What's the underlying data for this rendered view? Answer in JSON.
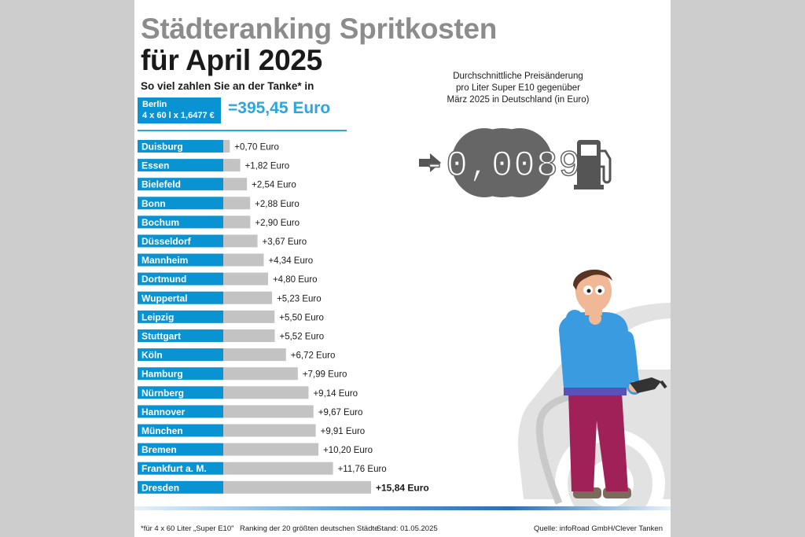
{
  "header": {
    "title_line1": "Städteranking Spritkosten",
    "title_line2": "für April 2025",
    "subtitle": "So viel zahlen Sie an der Tanke* in"
  },
  "berlin": {
    "city": "Berlin",
    "formula": "4 x 60 l x 1,6477 €",
    "total": "=395,45 Euro"
  },
  "price_change": {
    "caption_line1": "Durchschnittliche Preisänderung",
    "caption_line2": "pro Liter Super E10 gegenüber",
    "caption_line3": "März 2025 in Deutschland (in Euro)",
    "value": "-0,0089"
  },
  "chart_data": {
    "type": "bar",
    "orientation": "horizontal",
    "categories": [
      "Duisburg",
      "Essen",
      "Bielefeld",
      "Bonn",
      "Bochum",
      "Düsseldorf",
      "Mannheim",
      "Dortmund",
      "Wuppertal",
      "Leipzig",
      "Stuttgart",
      "Köln",
      "Hamburg",
      "Nürnberg",
      "Hannover",
      "München",
      "Bremen",
      "Frankfurt a. M.",
      "Dresden"
    ],
    "values": [
      0.7,
      1.82,
      2.54,
      2.88,
      2.9,
      3.67,
      4.34,
      4.8,
      5.23,
      5.5,
      5.52,
      6.72,
      7.99,
      9.14,
      9.67,
      9.91,
      10.2,
      11.76,
      15.84
    ],
    "value_labels": [
      "+0,70 Euro",
      "+1,82 Euro",
      "+2,54 Euro",
      "+2,88 Euro",
      "+2,90 Euro",
      "+3,67 Euro",
      "+4,34 Euro",
      "+4,80 Euro",
      "+5,23 Euro",
      "+5,50 Euro",
      "+5,52 Euro",
      "+6,72 Euro",
      "+7,99 Euro",
      "+9,14 Euro",
      "+9,67 Euro",
      "+9,91 Euro",
      "+10,20 Euro",
      "+11,76 Euro",
      "+15,84 Euro"
    ],
    "highlight": "Dresden",
    "colors": {
      "label_bg": "#0a93d3",
      "bar": "#c3c3c3",
      "accent": "#2aa6e0"
    }
  },
  "footer": {
    "note": "*für 4 x 60 Liter „Super E10\"",
    "ranking": "Ranking der 20 größten deutschen Städte",
    "stand": "Stand: 01.05.2025",
    "source": "Quelle: infoRoad GmbH/Clever Tanken"
  }
}
